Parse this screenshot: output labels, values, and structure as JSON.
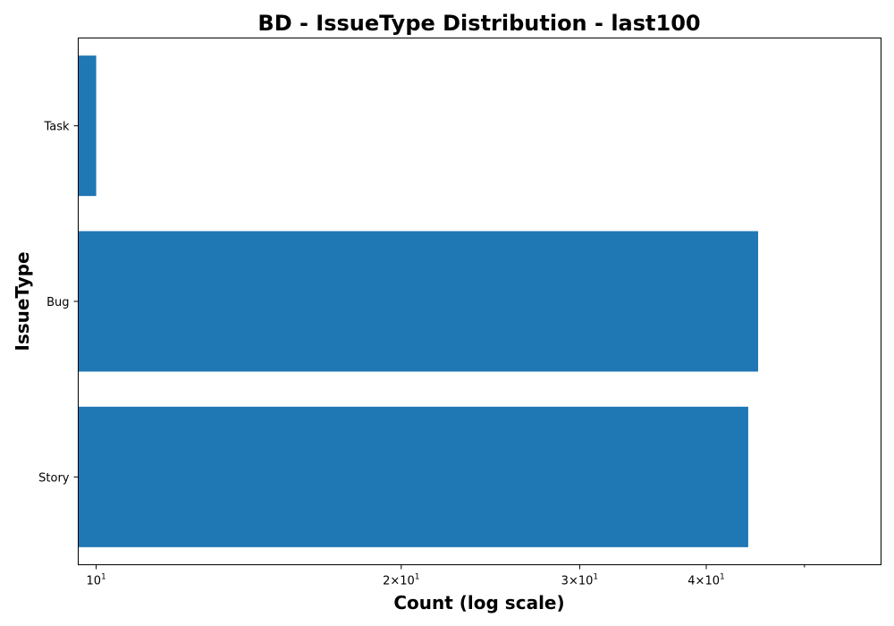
{
  "chart_data": {
    "type": "bar",
    "orientation": "horizontal",
    "title": "BD - IssueType Distribution - last100",
    "xlabel": "Count (log scale)",
    "ylabel": "IssueType",
    "xscale": "log",
    "xlim": [
      9.6,
      59.5
    ],
    "categories": [
      "Story",
      "Bug",
      "Task"
    ],
    "values": [
      44,
      45,
      10
    ],
    "bar_color": "#1f77b4",
    "x_ticks": [
      {
        "value": 10,
        "base": "10",
        "exp": "1"
      },
      {
        "value": 20,
        "base": "2×10",
        "exp": "1"
      },
      {
        "value": 30,
        "base": "3×10",
        "exp": "1"
      },
      {
        "value": 40,
        "base": "4×10",
        "exp": "1"
      }
    ],
    "x_minor_ticks": [
      50
    ],
    "grid": false,
    "legend": "none"
  }
}
